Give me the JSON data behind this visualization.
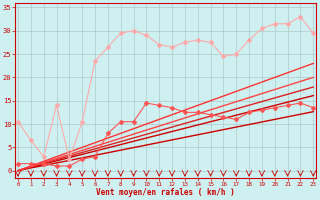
{
  "xlabel": "Vent moyen/en rafales ( km/h )",
  "xlabel_color": "#cc0000",
  "background_color": "#cff0f0",
  "grid_color": "#b0c8c8",
  "tick_color": "#cc0000",
  "x_ticks": [
    0,
    1,
    2,
    3,
    4,
    5,
    6,
    7,
    8,
    9,
    10,
    11,
    12,
    13,
    14,
    15,
    16,
    17,
    18,
    19,
    20,
    21,
    22,
    23
  ],
  "xlim": [
    -0.2,
    23.2
  ],
  "ylim": [
    -1.5,
    36
  ],
  "y_ticks": [
    0,
    5,
    10,
    15,
    20,
    25,
    30,
    35
  ],
  "lines": [
    {
      "color": "#ffaaaa",
      "lw": 0.8,
      "marker": "D",
      "markersize": 2.0,
      "y": [
        10.5,
        6.5,
        3.0,
        14.0,
        2.5,
        10.5,
        23.5,
        26.5,
        29.5,
        30.0,
        29.0,
        27.0,
        26.5,
        27.5,
        28.0,
        27.5,
        24.5,
        25.0,
        28.0,
        30.5,
        31.5,
        31.5,
        33.0,
        29.5
      ]
    },
    {
      "color": "#ff5555",
      "lw": 0.8,
      "marker": "D",
      "markersize": 2.0,
      "y": [
        1.5,
        1.5,
        1.5,
        1.0,
        1.0,
        2.5,
        3.0,
        8.0,
        10.5,
        10.5,
        14.5,
        14.0,
        13.5,
        12.5,
        12.5,
        12.0,
        11.5,
        11.0,
        12.5,
        13.0,
        13.5,
        14.0,
        14.5,
        13.5
      ]
    },
    {
      "color": "#cc0000",
      "lw": 1.0,
      "marker": null,
      "y": [
        0.0,
        0.6,
        1.1,
        1.65,
        2.2,
        2.75,
        3.3,
        3.85,
        4.4,
        4.95,
        5.5,
        6.05,
        6.6,
        7.15,
        7.7,
        8.25,
        8.8,
        9.35,
        9.9,
        10.45,
        11.0,
        11.55,
        12.1,
        12.65
      ]
    },
    {
      "color": "#cc0000",
      "lw": 1.0,
      "marker": null,
      "y": [
        0.0,
        0.7,
        1.4,
        2.1,
        2.8,
        3.5,
        4.2,
        4.9,
        5.6,
        6.3,
        7.0,
        7.7,
        8.4,
        9.1,
        9.8,
        10.5,
        11.2,
        11.9,
        12.6,
        13.3,
        14.0,
        14.7,
        15.4,
        16.1
      ]
    },
    {
      "color": "#dd2222",
      "lw": 1.0,
      "marker": null,
      "y": [
        0.0,
        0.78,
        1.56,
        2.34,
        3.12,
        3.9,
        4.68,
        5.46,
        6.24,
        7.02,
        7.8,
        8.58,
        9.36,
        10.14,
        10.92,
        11.7,
        12.48,
        13.26,
        14.04,
        14.82,
        15.6,
        16.38,
        17.16,
        17.94
      ]
    },
    {
      "color": "#ff4444",
      "lw": 1.0,
      "marker": null,
      "y": [
        0.0,
        0.87,
        1.74,
        2.61,
        3.48,
        4.35,
        5.22,
        6.09,
        6.96,
        7.83,
        8.7,
        9.57,
        10.44,
        11.31,
        12.18,
        13.05,
        13.92,
        14.79,
        15.66,
        16.53,
        17.4,
        18.27,
        19.14,
        20.01
      ]
    },
    {
      "color": "#ff3333",
      "lw": 1.0,
      "marker": null,
      "y": [
        0.0,
        1.0,
        2.0,
        3.0,
        4.0,
        5.0,
        6.0,
        7.0,
        8.0,
        9.0,
        10.0,
        11.0,
        12.0,
        13.0,
        14.0,
        15.0,
        16.0,
        17.0,
        18.0,
        19.0,
        20.0,
        21.0,
        22.0,
        23.0
      ]
    }
  ]
}
